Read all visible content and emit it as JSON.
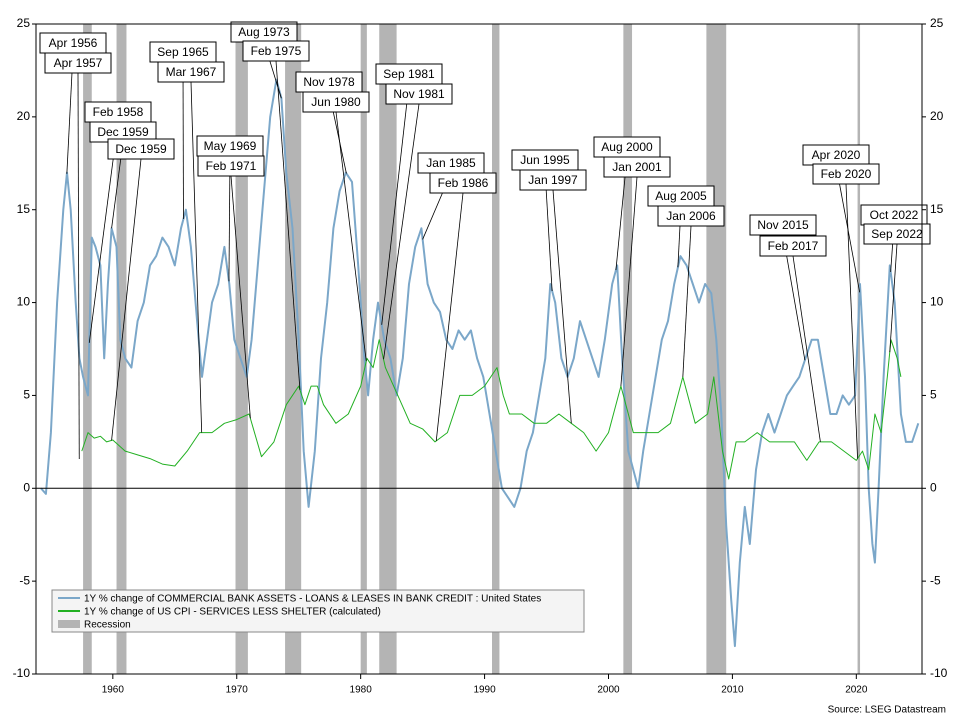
{
  "chart_data": {
    "type": "line",
    "source": "Source: LSEG Datastream",
    "xlim": [
      1953.8,
      2025.3
    ],
    "xticks": [
      1960,
      1970,
      1980,
      1990,
      2000,
      2010,
      2020
    ],
    "ylim": [
      -10,
      25
    ],
    "yticks": [
      -10,
      -5,
      0,
      5,
      10,
      15,
      20,
      25
    ],
    "y2lim": [
      -10,
      25
    ],
    "y2ticks": [
      -10,
      -5,
      0,
      5,
      10,
      15,
      20,
      25
    ],
    "grid": false,
    "legend": "bottom-left",
    "recessions": {
      "name": "Recession",
      "color": "#b4b4b4",
      "periods": [
        [
          1957.6,
          1958.3
        ],
        [
          1960.3,
          1961.1
        ],
        [
          1969.9,
          1970.9
        ],
        [
          1973.9,
          1975.2
        ],
        [
          1980.0,
          1980.5
        ],
        [
          1981.5,
          1982.9
        ],
        [
          1990.6,
          1991.2
        ],
        [
          2001.2,
          2001.9
        ],
        [
          2007.9,
          2009.5
        ],
        [
          2020.1,
          2020.3
        ]
      ]
    },
    "series": [
      {
        "name": "1Y % change of COMMERCIAL BANK ASSETS - LOANS & LEASES IN BANK CREDIT : United States",
        "color": "#7ba7c9",
        "width": 2,
        "x": [
          1954.2,
          1954.6,
          1955.0,
          1955.5,
          1956.0,
          1956.3,
          1956.6,
          1957.0,
          1957.3,
          1957.6,
          1958.0,
          1958.3,
          1958.6,
          1959.0,
          1959.3,
          1959.6,
          1959.9,
          1960.3,
          1960.6,
          1961.0,
          1961.5,
          1962.0,
          1962.5,
          1963.0,
          1963.5,
          1964.0,
          1964.5,
          1965.0,
          1965.5,
          1965.9,
          1966.3,
          1966.8,
          1967.2,
          1967.6,
          1968.0,
          1968.5,
          1969.0,
          1969.4,
          1969.8,
          1970.3,
          1970.8,
          1971.2,
          1971.7,
          1972.2,
          1972.7,
          1973.2,
          1973.6,
          1974.0,
          1974.5,
          1975.0,
          1975.4,
          1975.8,
          1976.3,
          1976.8,
          1977.3,
          1977.8,
          1978.3,
          1978.8,
          1979.3,
          1979.8,
          1980.3,
          1980.6,
          1981.0,
          1981.4,
          1981.9,
          1982.4,
          1982.9,
          1983.4,
          1983.9,
          1984.4,
          1984.9,
          1985.4,
          1985.9,
          1986.4,
          1986.9,
          1987.4,
          1987.9,
          1988.4,
          1988.9,
          1989.4,
          1989.9,
          1990.4,
          1990.9,
          1991.4,
          1991.9,
          1992.4,
          1992.9,
          1993.4,
          1993.9,
          1994.4,
          1994.9,
          1995.3,
          1995.7,
          1996.2,
          1996.7,
          1997.2,
          1997.7,
          1998.2,
          1998.7,
          1999.2,
          1999.7,
          2000.3,
          2000.7,
          2001.1,
          2001.6,
          2002.0,
          2002.4,
          2002.8,
          2003.3,
          2003.8,
          2004.3,
          2004.8,
          2005.3,
          2005.8,
          2006.3,
          2006.8,
          2007.3,
          2007.8,
          2008.3,
          2008.7,
          2009.1,
          2009.5,
          2009.9,
          2010.2,
          2010.6,
          2011.0,
          2011.4,
          2011.9,
          2012.4,
          2012.9,
          2013.4,
          2013.9,
          2014.4,
          2014.9,
          2015.4,
          2015.9,
          2016.4,
          2016.9,
          2017.4,
          2017.9,
          2018.4,
          2018.9,
          2019.4,
          2019.9,
          2020.3,
          2020.7,
          2021.0,
          2021.3,
          2021.5,
          2021.8,
          2022.2,
          2022.7,
          2023.1,
          2023.6,
          2024.0,
          2024.5,
          2025.0
        ],
        "values": [
          0,
          -0.3,
          3,
          10,
          15,
          17,
          15,
          10,
          7,
          6,
          5,
          13.5,
          13,
          12,
          7,
          11,
          14,
          13,
          8,
          7,
          6.5,
          9,
          10,
          12,
          12.5,
          13.5,
          13,
          12,
          14,
          15,
          13,
          9,
          6,
          8,
          10,
          11,
          13,
          11,
          8,
          7,
          6,
          8,
          12,
          16,
          20,
          22,
          21,
          17,
          14,
          8,
          2,
          -1,
          2,
          7,
          10,
          14,
          16,
          17,
          16.5,
          12,
          7,
          5,
          8,
          10,
          8,
          7,
          5,
          7,
          11,
          13,
          14,
          11,
          10,
          9.5,
          8,
          7.5,
          8.5,
          8,
          8.5,
          7,
          6,
          4,
          2,
          0,
          -0.5,
          -1,
          0,
          2,
          3,
          5,
          7,
          11,
          10,
          7,
          6,
          7,
          9,
          8,
          7,
          6,
          8,
          11,
          12,
          7,
          2,
          1,
          0,
          2,
          4,
          6,
          8,
          9,
          11,
          12.5,
          12,
          11,
          10,
          11,
          10.5,
          8,
          4,
          -2,
          -6,
          -8.5,
          -4,
          -1,
          -3,
          1,
          3,
          4,
          3,
          4,
          5,
          5.5,
          6,
          7,
          8,
          8,
          6,
          4,
          4,
          5,
          4.5,
          5,
          11,
          6,
          0,
          -3,
          -4,
          0,
          6,
          12,
          10,
          4,
          2.5,
          2.5,
          3.5
        ],
        "annotations": [
          {
            "x": 1956.29,
            "label": "Apr 1956"
          },
          {
            "x": 1958.1,
            "label": "Feb 1958"
          },
          {
            "x": 1959.9,
            "label": "Dec 1959"
          },
          {
            "x": 1965.7,
            "label": "Sep 1965"
          },
          {
            "x": 1969.37,
            "label": "May 1969"
          },
          {
            "x": 1973.6,
            "label": "Aug 1973"
          },
          {
            "x": 1978.85,
            "label": "Nov 1978"
          },
          {
            "x": 1981.7,
            "label": "Sep 1981"
          },
          {
            "x": 1985.0,
            "label": "Jan 1985"
          },
          {
            "x": 1995.45,
            "label": "Jun 1995"
          },
          {
            "x": 2000.6,
            "label": "Aug 2000"
          },
          {
            "x": 2005.6,
            "label": "Aug 2005"
          },
          {
            "x": 2015.85,
            "label": "Nov 2015"
          },
          {
            "x": 2020.27,
            "label": "Apr 2020"
          },
          {
            "x": 2022.77,
            "label": "Oct 2022"
          }
        ]
      },
      {
        "name": "1Y % change of US CPI - SERVICES LESS SHELTER (calculated)",
        "color": "#22b022",
        "width": 1,
        "x": [
          1957.5,
          1958,
          1958.5,
          1959,
          1959.5,
          1960,
          1961,
          1962,
          1963,
          1964,
          1965,
          1966,
          1967,
          1968,
          1969,
          1970,
          1971,
          1972,
          1973,
          1974,
          1975,
          1975.5,
          1976,
          1976.5,
          1977,
          1978,
          1979,
          1980,
          1980.5,
          1981,
          1981.5,
          1982,
          1983,
          1984,
          1985,
          1986,
          1987,
          1988,
          1989,
          1990,
          1991,
          1991.5,
          1992,
          1993,
          1994,
          1995,
          1996,
          1997,
          1998,
          1999,
          2000,
          2001,
          2002,
          2003,
          2004,
          2005,
          2006,
          2007,
          2008,
          2008.5,
          2009.2,
          2009.7,
          2010.3,
          2011,
          2012,
          2013,
          2014,
          2015,
          2016,
          2017,
          2018,
          2019,
          2020,
          2020.5,
          2021,
          2021.5,
          2022,
          2022.5,
          2022.8,
          2023.3,
          2023.6
        ],
        "values": [
          2,
          3,
          2.7,
          2.8,
          2.5,
          2.6,
          2,
          1.8,
          1.6,
          1.3,
          1.2,
          2,
          3,
          3,
          3.5,
          3.7,
          4,
          1.7,
          2.5,
          4.5,
          5.5,
          4.5,
          5.5,
          5.5,
          4.5,
          3.5,
          4,
          5.5,
          7,
          6.5,
          8,
          6.5,
          5,
          3.5,
          3.2,
          2.5,
          3,
          5,
          5,
          5.5,
          6.5,
          5,
          4,
          4,
          3.5,
          3.5,
          4,
          3.5,
          3,
          2,
          3,
          5.5,
          3,
          3,
          3,
          3.5,
          6,
          3.5,
          4,
          6,
          2,
          0.5,
          2.5,
          2.5,
          3,
          2.5,
          2.5,
          2.5,
          1.5,
          2.5,
          2.5,
          2,
          1.5,
          2,
          1,
          4,
          3,
          6,
          8,
          7,
          6
        ],
        "annotations": [
          {
            "x": 1957.29,
            "label": "Apr 1957"
          },
          {
            "x": 1959.9,
            "label": "Dec 1959"
          },
          {
            "x": 1967.17,
            "label": "Mar 1967"
          },
          {
            "x": 1971.1,
            "label": "Feb 1971"
          },
          {
            "x": 1975.1,
            "label": "Feb 1975"
          },
          {
            "x": 1980.45,
            "label": "Jun 1980"
          },
          {
            "x": 1981.85,
            "label": "Nov 1981"
          },
          {
            "x": 1986.1,
            "label": "Feb 1986"
          },
          {
            "x": 1997.0,
            "label": "Jan 1997"
          },
          {
            "x": 2001.0,
            "label": "Jan 2001"
          },
          {
            "x": 2006.0,
            "label": "Jan 2006"
          },
          {
            "x": 2017.1,
            "label": "Feb 2017"
          },
          {
            "x": 2020.1,
            "label": "Feb 2020"
          },
          {
            "x": 2022.7,
            "label": "Sep 2022"
          }
        ]
      }
    ]
  }
}
